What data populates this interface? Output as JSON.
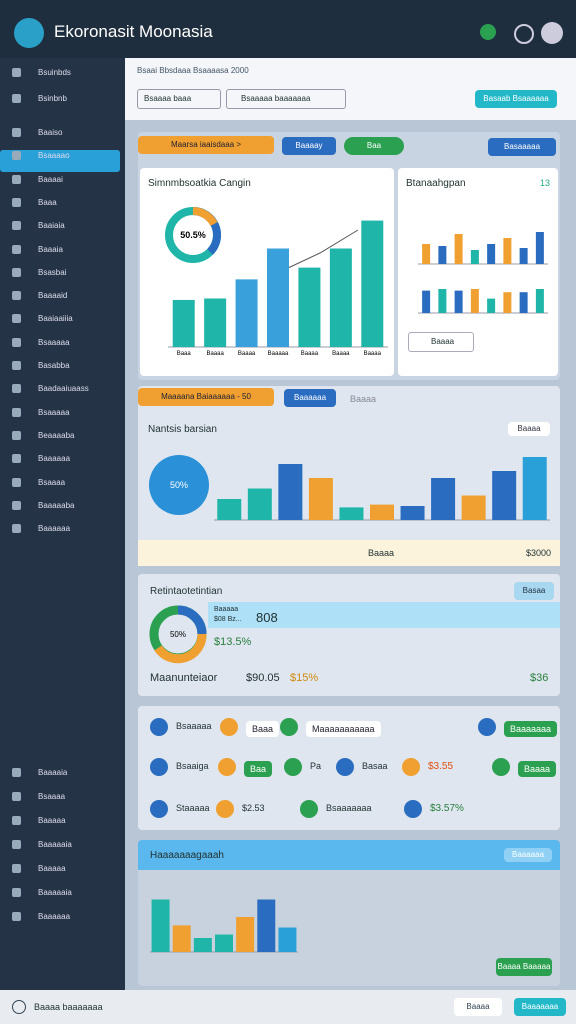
{
  "header": {
    "title": "Ekoronasit Moonasia"
  },
  "sidebar": {
    "top": [
      "Bsuinbds",
      "Bsinbnb"
    ],
    "items": [
      "Baaiso",
      "Bsaaaao",
      "Baaaai",
      "Baaa",
      "Baaiaia",
      "Baaaia",
      "Bsasbai",
      "Baaaaid",
      "Baaiaaiiia",
      "Bsaaaaa",
      "Basabba",
      "Baadaaiuaass",
      "Bsaaaaa",
      "Beaaaaba",
      "Baaaaaa",
      "Bsaaaa",
      "Baaaaaba",
      "Baaaaaa"
    ],
    "bottom": [
      "Baaaaia",
      "Bsaaaa",
      "Baaaaa",
      "Baaaaaia",
      "Baaaaa",
      "Baaaaaia",
      "Baaaaaa"
    ]
  },
  "toolbar": {
    "breadcrumb": "Bsaai  Bbsdaaa  Bsaaaasa 2000",
    "select": "Bsaaaa baaa",
    "search": "Bsaaaaa baaaaaaa",
    "button": "Basaab Bsaaaaaa"
  },
  "panel1": {
    "tag": "Maarsa iaaisdaaa >",
    "tab": "Baaaay",
    "pill": "Baa",
    "button": "Basaaaaa",
    "card1": {
      "title": "Simnmbsoatkia Cangin",
      "donut": "50.5%",
      "xlabels": [
        "Baaa",
        "Baaaa",
        "Baaaa",
        "Baaaaa",
        "Baaaa",
        "Baaaa",
        "Baaaa"
      ]
    },
    "card2": {
      "title": "Btanaahgpan",
      "badge": "13",
      "select": "Baaaa"
    }
  },
  "panel2": {
    "tag": "Maaaana Baiaaaaaa - 50",
    "tab": "Baaaaaa",
    "tab2": "Baaaa",
    "subtitle": "Nantsis barsian",
    "button": "Baaaa",
    "donut": "50%",
    "footer": "Baaaa",
    "total": "$3000"
  },
  "panel3": {
    "title": "Retintaotetintian",
    "badge": "Basaa",
    "line1": "Baaaaa",
    "line2": "$08 Bz...",
    "big": "808",
    "donut": "50%",
    "pct": "$13.5%",
    "label": "Maanunteiaor",
    "v1": "$90.05",
    "v2": "$15%",
    "v3": "$36"
  },
  "panel4": {
    "r1": [
      "Bsaaaaa",
      "Baaa",
      "Maaaaaaaaaaa",
      "Baaaaaaa"
    ],
    "r2": [
      "Bsaaiga",
      "Baa",
      "Pa",
      "Basaa",
      "$3.55",
      "Baaaa"
    ],
    "r3": [
      "Staaaaa",
      "$2.53",
      "Bsaaaaaaa",
      "$3.57%"
    ]
  },
  "panel5": {
    "title": "Haaaaaaagaaah",
    "badge": "Baaaaaa",
    "button": "Baaaa Baaaaa"
  },
  "footer": {
    "text": "Baaaa baaaaaaa",
    "b1": "Baaaa",
    "b2": "Baaaaaaa"
  },
  "charts": [
    {
      "type": "bar",
      "ylim": [
        0,
        100
      ],
      "values": [
        32,
        33,
        46,
        67,
        54,
        67,
        86
      ],
      "colors": [
        "#1fb5a8",
        "#1fb5a8",
        "#3aa0db",
        "#3aa0db",
        "#1fb5a8",
        "#1fb5a8",
        "#1fb5a8"
      ]
    },
    {
      "type": "bar",
      "ylim": [
        0,
        50
      ],
      "values": [
        20,
        18,
        30,
        14,
        20,
        26,
        16,
        32
      ],
      "colors": [
        "#f0a030",
        "#2a6cc0",
        "#f0a030",
        "#1fb5a8",
        "#2a6cc0",
        "#f0a030",
        "#2a6cc0",
        "#2a6cc0"
      ]
    },
    {
      "type": "bar",
      "ylim": [
        0,
        50
      ],
      "values": [
        28,
        30,
        28,
        30,
        18,
        26,
        26,
        30
      ],
      "colors": [
        "#2a6cc0",
        "#1fb5a8",
        "#2a6cc0",
        "#f0a030",
        "#1fb5a8",
        "#f0a030",
        "#2a6cc0",
        "#1fb5a8"
      ]
    },
    {
      "type": "bar",
      "ylim": [
        0,
        100
      ],
      "values": [
        30,
        45,
        80,
        60,
        18,
        22,
        20,
        60,
        35,
        70,
        90
      ],
      "colors": [
        "#1fb5a8",
        "#1fb5a8",
        "#2a6cc0",
        "#f0a030",
        "#1fb5a8",
        "#f0a030",
        "#2a6cc0",
        "#2a6cc0",
        "#f0a030",
        "#2a6cc0",
        "#2aa0d8"
      ]
    },
    {
      "type": "bar",
      "ylim": [
        0,
        100
      ],
      "values": [
        75,
        38,
        20,
        25,
        50,
        75,
        35
      ],
      "colors": [
        "#1fb5a8",
        "#f0a030",
        "#1fb5a8",
        "#1fb5a8",
        "#f0a030",
        "#2a6cc0",
        "#2aa0d8"
      ]
    }
  ]
}
